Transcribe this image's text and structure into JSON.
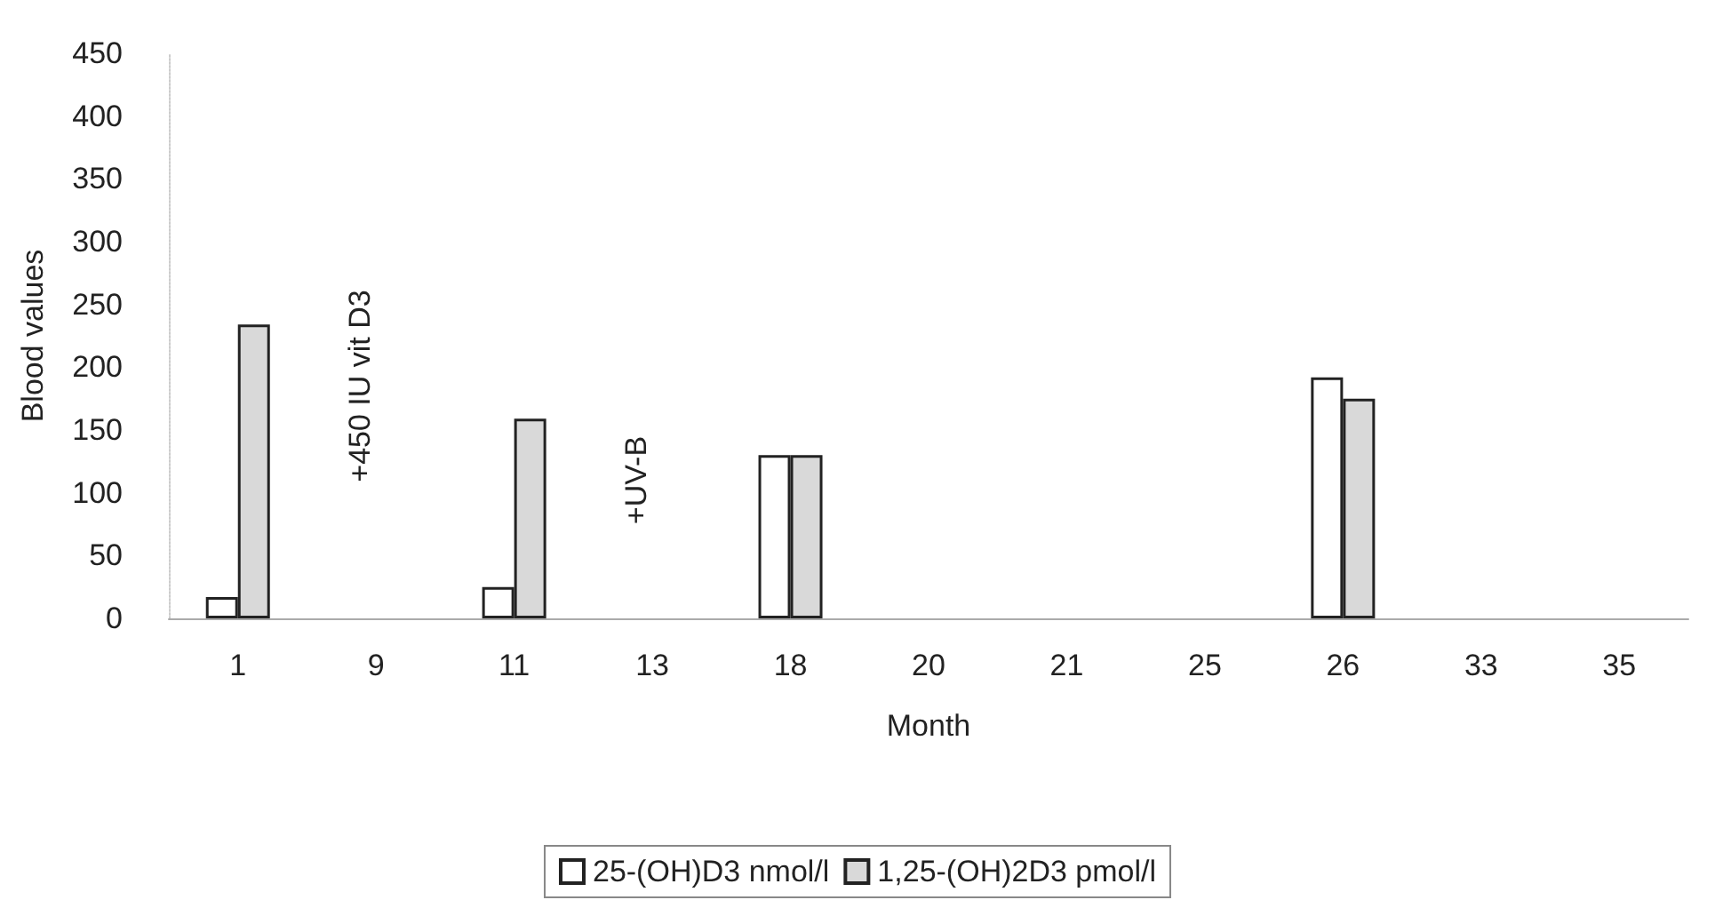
{
  "chart_data": {
    "type": "bar",
    "xlabel": "Month",
    "ylabel": "Blood values",
    "categories": [
      "1",
      "9",
      "11",
      "13",
      "18",
      "20",
      "21",
      "25",
      "26",
      "33",
      "35"
    ],
    "series": [
      {
        "name": "25-(OH)D3 nmol/l",
        "color": "#ffffff",
        "values": [
          17,
          null,
          25,
          null,
          130,
          null,
          null,
          null,
          192,
          null,
          null
        ]
      },
      {
        "name": "1,25-(OH)2D3 pmol/l",
        "color": "#d9d9d9",
        "values": [
          234,
          null,
          159,
          null,
          130,
          null,
          null,
          null,
          175,
          null,
          null
        ]
      }
    ],
    "ylim": [
      0,
      450
    ],
    "yticks": [
      0,
      50,
      100,
      150,
      200,
      250,
      300,
      350,
      400,
      450
    ],
    "grid": false,
    "legend": "bottom",
    "annotations": [
      "+450 IU vit D3",
      "+UV-B"
    ]
  }
}
